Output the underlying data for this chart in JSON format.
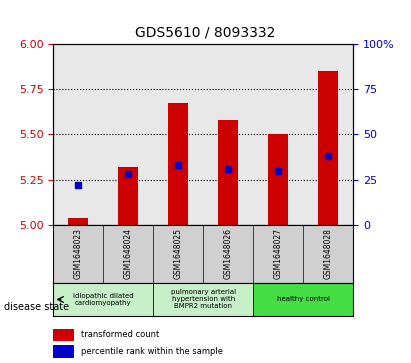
{
  "title": "GDS5610 / 8093332",
  "samples": [
    "GSM1648023",
    "GSM1648024",
    "GSM1648025",
    "GSM1648026",
    "GSM1648027",
    "GSM1648028"
  ],
  "transformed_count": [
    5.04,
    5.32,
    5.67,
    5.58,
    5.5,
    5.85
  ],
  "percentile_rank": [
    22,
    28,
    33,
    31,
    30,
    38
  ],
  "ylim_left": [
    5.0,
    6.0
  ],
  "ylim_right": [
    0,
    100
  ],
  "yticks_left": [
    5.0,
    5.25,
    5.5,
    5.75,
    6.0
  ],
  "yticks_right": [
    0,
    25,
    50,
    75,
    100
  ],
  "bar_color": "#cc0000",
  "marker_color": "#0000cc",
  "bar_width": 0.4,
  "disease_groups": [
    {
      "label": "idiopathic dilated\ncardiomyopathy",
      "indices": [
        0,
        1
      ],
      "color": "#c8f0c8"
    },
    {
      "label": "pulmonary arterial\nhypertension with\nBMPR2 mutation",
      "indices": [
        2,
        3
      ],
      "color": "#c8f0c8"
    },
    {
      "label": "healthy control",
      "indices": [
        4,
        5
      ],
      "color": "#44dd44"
    }
  ],
  "xlabel_disease_state": "disease state",
  "legend_transformed": "transformed count",
  "legend_percentile": "percentile rank within the sample",
  "background_color": "#ffffff",
  "plot_bg_color": "#e8e8e8",
  "grid_color": "#000000",
  "left_tick_color": "#cc0000",
  "right_tick_color": "#0000cc"
}
